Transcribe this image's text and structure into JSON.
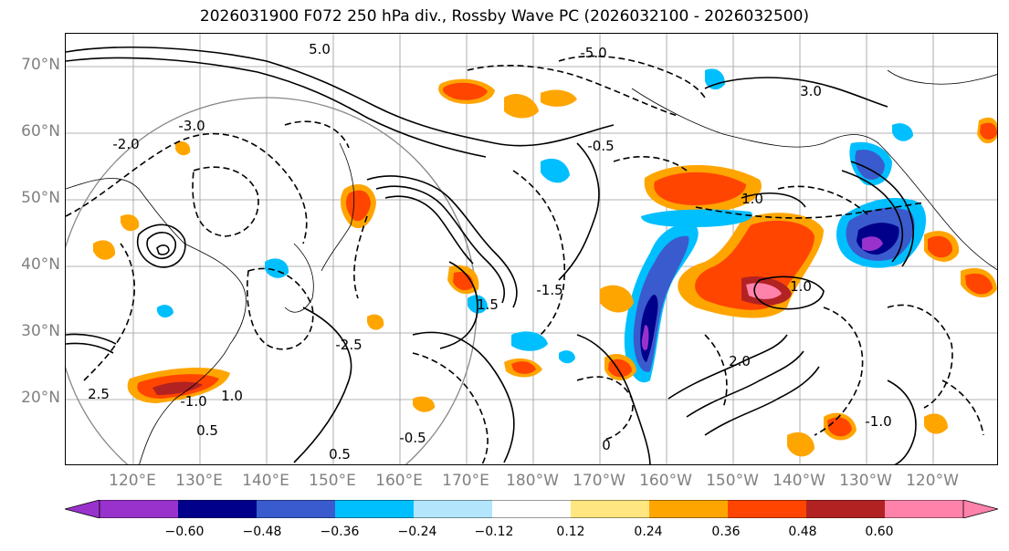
{
  "title": "2026031900 F072 250 hPa div., Rossby Wave PC (2026032100 - 2026032500)",
  "latitude_labels": [
    "70°N",
    "60°N",
    "50°N",
    "40°N",
    "30°N",
    "20°N"
  ],
  "longitude_labels": [
    "120°E",
    "130°E",
    "140°E",
    "150°E",
    "160°E",
    "170°E",
    "180°W",
    "170°W",
    "160°W",
    "150°W",
    "140°W",
    "130°W",
    "120°W"
  ],
  "contour_labels": [
    "5.0",
    "-5.0",
    "3.0",
    "-3.0",
    "-2.0",
    "2.0",
    "1.0",
    "-1.0",
    "1.5",
    "-1.5",
    "0.5",
    "-0.5",
    "0",
    "-0.5",
    "0.5",
    "1.0",
    "-1.0",
    "-2.5",
    "2.5",
    "1.0"
  ],
  "colorbar": {
    "colors": [
      "#9932cc",
      "#00008b",
      "#3a5bcd",
      "#00bfff",
      "#b3e5fc",
      "#ffffff",
      "#ffe680",
      "#ffa500",
      "#ff4500",
      "#b22222",
      "#ff82ab"
    ],
    "under_color": "#9932cc",
    "over_color": "#ff82ab",
    "tick_labels": [
      "−0.60",
      "−0.48",
      "−0.36",
      "−0.24",
      "−0.12",
      "0.12",
      "0.24",
      "0.36",
      "0.48",
      "0.60"
    ],
    "tick_values": [
      -0.6,
      -0.48,
      -0.36,
      -0.24,
      -0.12,
      0.12,
      0.24,
      0.36,
      0.48,
      0.6
    ],
    "range": [
      -0.72,
      0.72
    ]
  }
}
